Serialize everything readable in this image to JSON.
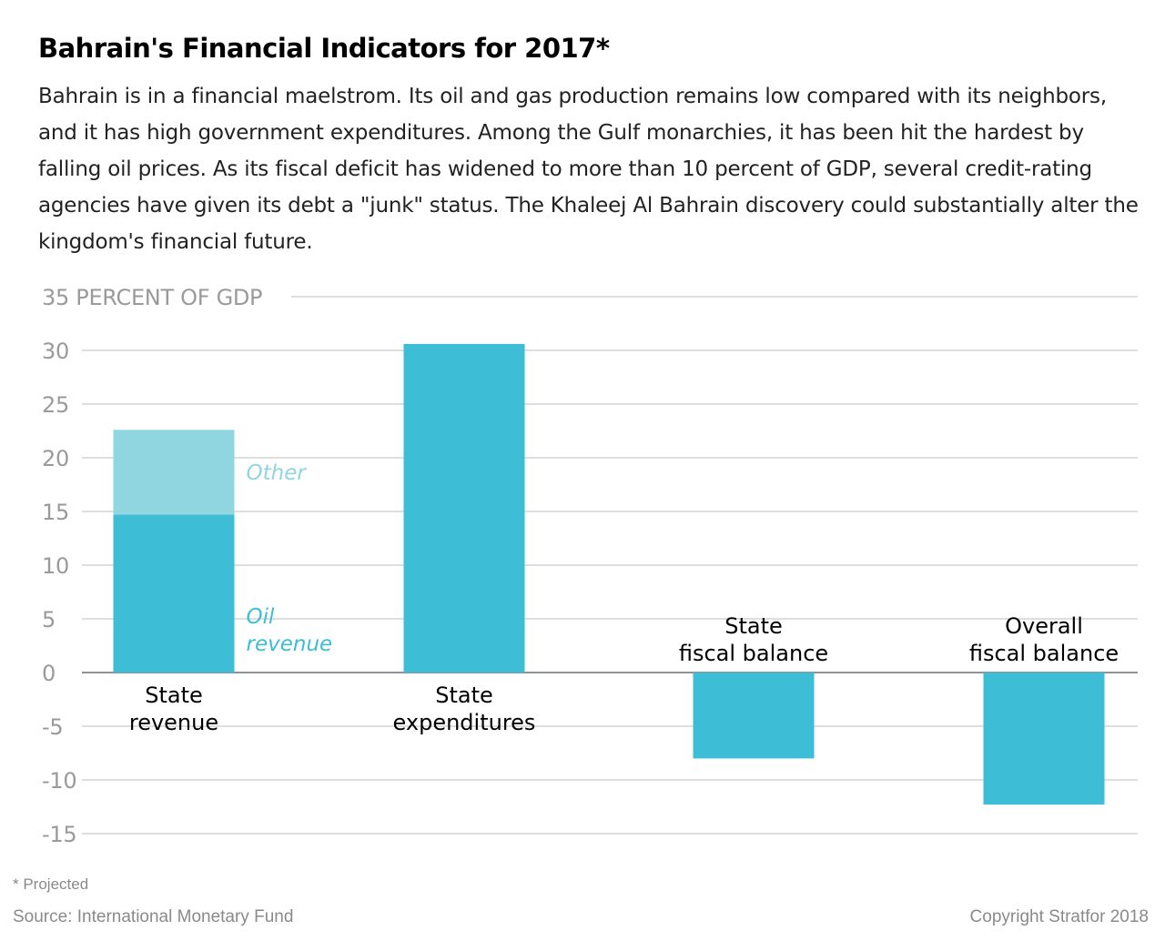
{
  "title": "Bahrain's Financial Indicators for 2017*",
  "subtitle": "Bahrain is in a financial maelstrom. Its oil and gas production remains low compared with its neighbors, and it has high government expenditures. Among the Gulf monarchies, it has been hit the hardest by falling oil prices. As its fiscal deficit has widened to more than 10 percent of GDP, several credit-rating agencies have given its debt a \"junk\" status. The Khaleej Al Bahrain discovery could substantially alter the kingdom's financial future.",
  "footnote": "* Projected",
  "source": "Source: International Monetary Fund",
  "copyright": "Copyright Stratfor 2018",
  "chart_data": {
    "type": "bar",
    "ylabel": "PERCENT OF GDP",
    "ylim": [
      -15,
      35
    ],
    "yticks": [
      35,
      30,
      25,
      20,
      15,
      10,
      5,
      0,
      -5,
      -10,
      -15
    ],
    "grid": true,
    "categories": [
      [
        "State",
        "revenue"
      ],
      [
        "State",
        "expenditures"
      ],
      [
        "State",
        "fiscal balance"
      ],
      [
        "Overall",
        "fiscal balance"
      ]
    ],
    "bars": [
      {
        "category_index": 0,
        "segments": [
          {
            "name": "Oil revenue",
            "name_lines": [
              "Oil",
              "revenue"
            ],
            "value": 14.7,
            "color": "#3dbed6",
            "label_color": "#3dbed6"
          },
          {
            "name": "Other",
            "name_lines": [
              "Other"
            ],
            "value": 7.9,
            "color": "#8fd6e0",
            "label_color": "#8fd6e0"
          }
        ]
      },
      {
        "category_index": 1,
        "value": 30.6,
        "color": "#3dbed6"
      },
      {
        "category_index": 2,
        "value": -8.0,
        "color": "#3dbed6"
      },
      {
        "category_index": 3,
        "value": -12.3,
        "color": "#3dbed6"
      }
    ],
    "colors": {
      "bar": "#3dbed6",
      "other": "#8fd6e0",
      "grid": "#bdbdbd",
      "tick": "#9a9a9a",
      "zero_line": "#6f6f6f"
    }
  }
}
